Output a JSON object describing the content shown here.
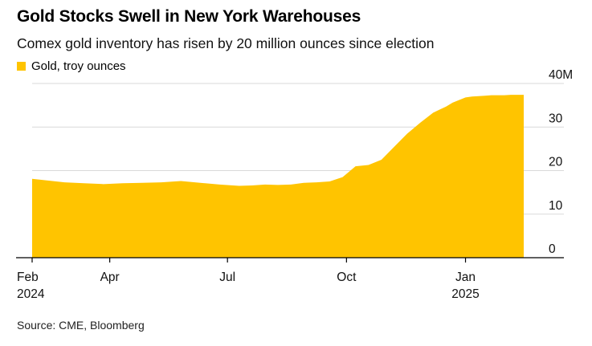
{
  "title": "Gold Stocks Swell in New York Warehouses",
  "subtitle": "Comex gold inventory has risen by 20 million ounces since election",
  "source": "Source: CME, Bloomberg",
  "colors": {
    "series": "#FFC400",
    "axis": "#000000",
    "grid": "#d9d9d9"
  },
  "chart_data": {
    "type": "area",
    "title": "Gold Stocks Swell in New York Warehouses",
    "subtitle": "Comex gold inventory has risen by 20 million ounces since election",
    "series": [
      {
        "name": "Gold, troy ounces",
        "color": "#FFC400",
        "x_days": [
          0,
          10,
          25,
          40,
          55,
          70,
          85,
          100,
          115,
          130,
          145,
          160,
          170,
          180,
          190,
          200,
          210,
          220,
          230,
          240,
          250,
          260,
          270,
          280,
          290,
          300,
          310,
          315,
          320,
          325,
          330,
          335,
          340,
          345,
          350,
          355,
          360,
          365,
          370,
          375,
          380
        ],
        "values": [
          18.1,
          17.8,
          17.3,
          17.1,
          16.9,
          17.1,
          17.2,
          17.3,
          17.6,
          17.2,
          16.8,
          16.5,
          16.6,
          16.8,
          16.7,
          16.8,
          17.2,
          17.3,
          17.5,
          18.5,
          21.0,
          21.3,
          22.5,
          25.5,
          28.5,
          31.0,
          33.3,
          34.0,
          34.7,
          35.6,
          36.2,
          36.8,
          37.0,
          37.1,
          37.2,
          37.3,
          37.3,
          37.3,
          37.4,
          37.4,
          37.4
        ]
      }
    ],
    "x_start_label": "Feb 2024",
    "x_ticks": [
      {
        "day": 0,
        "label": "Feb",
        "label2": "2024"
      },
      {
        "day": 60,
        "label": "Apr",
        "label2": ""
      },
      {
        "day": 151,
        "label": "Jul",
        "label2": ""
      },
      {
        "day": 243,
        "label": "Oct",
        "label2": ""
      },
      {
        "day": 335,
        "label": "Jan",
        "label2": "2025"
      }
    ],
    "y_ticks": [
      {
        "value": 0,
        "label": "0"
      },
      {
        "value": 10,
        "label": "10"
      },
      {
        "value": 20,
        "label": "20"
      },
      {
        "value": 30,
        "label": "30"
      },
      {
        "value": 40,
        "label": "40M"
      }
    ],
    "ylim": [
      0,
      40
    ],
    "xlim_days": [
      0,
      380
    ],
    "xlabel": "",
    "ylabel": "",
    "legend_position": "top-left",
    "grid": true
  }
}
